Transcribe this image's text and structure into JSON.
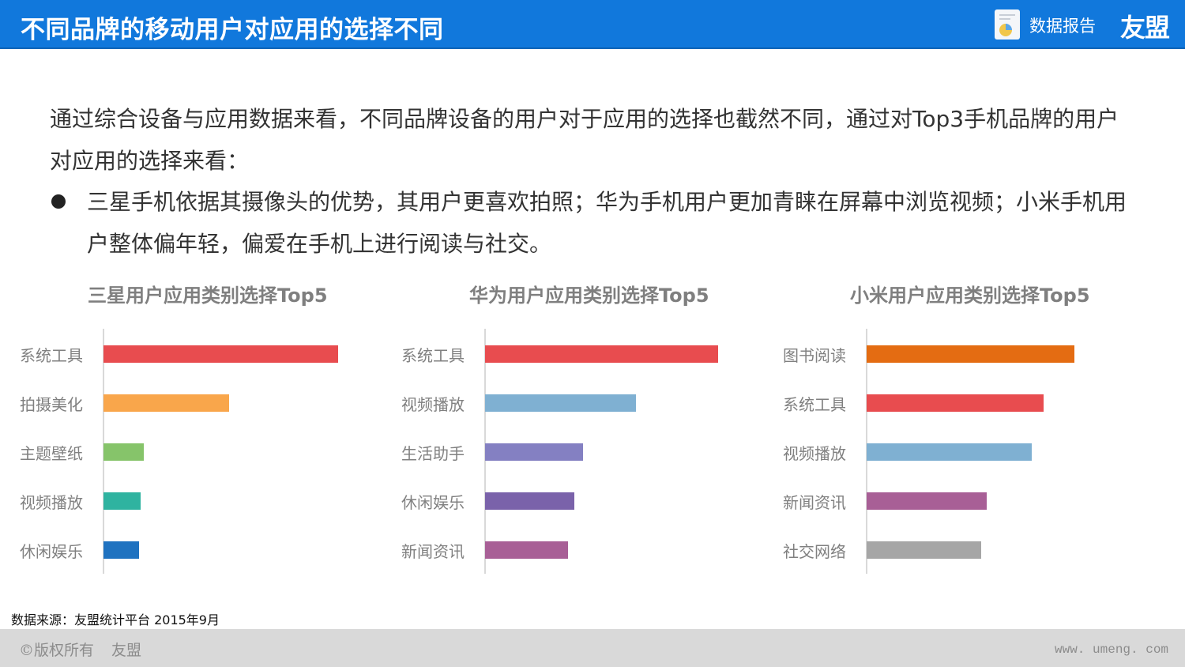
{
  "header": {
    "title": "不同品牌的移动用户对应用的选择不同",
    "report_label": "数据报告",
    "brand": "友盟",
    "accent_color": "#1178dc"
  },
  "intro": {
    "paragraph": "通过综合设备与应用数据来看，不同品牌设备的用户对于应用的选择也截然不同，通过对Top3手机品牌的用户对应用的选择来看：",
    "bullet": "三星手机依据其摄像头的优势，其用户更喜欢拍照；华为手机用户更加青睐在屏幕中浏览视频；小米手机用户整体偏年轻，偏爱在手机上进行阅读与社交。"
  },
  "chart_data": [
    {
      "type": "bar",
      "orientation": "horizontal",
      "title": "三星用户应用类别选择Top5",
      "categories": [
        "系统工具",
        "拍摄美化",
        "主题壁纸",
        "视频播放",
        "休闲娱乐"
      ],
      "values": [
        297,
        159,
        51,
        47,
        45
      ],
      "value_note": "relative bar lengths (no numeric labels shown)",
      "colors": [
        "#e84c4f",
        "#f9a64b",
        "#86c46a",
        "#2fb3a0",
        "#1f72c0"
      ],
      "xlabel": "",
      "ylabel": "",
      "grid": false,
      "legend": false
    },
    {
      "type": "bar",
      "orientation": "horizontal",
      "title": "华为用户应用类别选择Top5",
      "categories": [
        "系统工具",
        "视频播放",
        "生活助手",
        "休闲娱乐",
        "新闻资讯"
      ],
      "values": [
        295,
        191,
        124,
        113,
        105
      ],
      "value_note": "relative bar lengths (no numeric labels shown)",
      "colors": [
        "#e84c4f",
        "#7fb0d2",
        "#8480c2",
        "#7a62aa",
        "#a85f96"
      ],
      "xlabel": "",
      "ylabel": "",
      "grid": false,
      "legend": false
    },
    {
      "type": "bar",
      "orientation": "horizontal",
      "title": "小米用户应用类别选择Top5",
      "categories": [
        "图书阅读",
        "系统工具",
        "视频播放",
        "新闻资讯",
        "社交网络"
      ],
      "values": [
        263,
        224,
        209,
        152,
        145
      ],
      "value_note": "relative bar lengths (no numeric labels shown)",
      "colors": [
        "#e46c12",
        "#e84c4f",
        "#7fb0d2",
        "#a85f96",
        "#a6a6a6"
      ],
      "xlabel": "",
      "ylabel": "",
      "grid": false,
      "legend": false
    }
  ],
  "source": "数据来源：友盟统计平台 2015年9月",
  "footer": {
    "copyright": "©版权所有",
    "company": "友盟",
    "website": "www. umeng. com"
  }
}
